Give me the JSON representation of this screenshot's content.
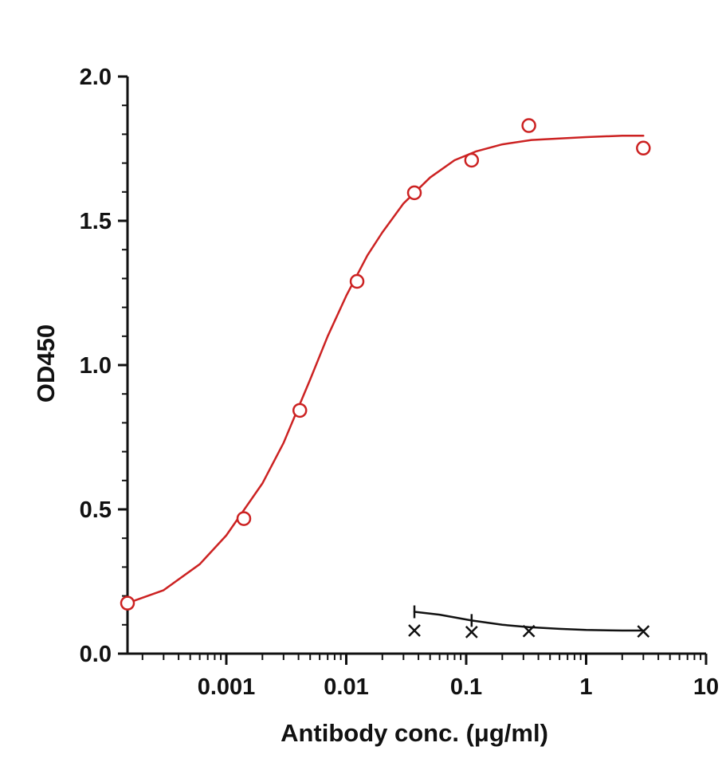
{
  "chart_data": {
    "type": "scatter",
    "title": "",
    "xlabel": "Antibody conc. (μg/ml)",
    "ylabel": "OD450",
    "x_scale": "log",
    "xlim": [
      0.00015,
      10
    ],
    "ylim": [
      0,
      2.0
    ],
    "grid": false,
    "legend": "none",
    "x_ticks": [
      {
        "value": 0.001,
        "label": "0.001"
      },
      {
        "value": 0.01,
        "label": "0.01"
      },
      {
        "value": 0.1,
        "label": "0.1"
      },
      {
        "value": 1,
        "label": "1"
      },
      {
        "value": 10,
        "label": "10"
      }
    ],
    "y_ticks": [
      {
        "value": 0.0,
        "label": "0.0"
      },
      {
        "value": 0.5,
        "label": "0.5"
      },
      {
        "value": 1.0,
        "label": "1.0"
      },
      {
        "value": 1.5,
        "label": "1.5"
      },
      {
        "value": 2.0,
        "label": "2.0"
      }
    ],
    "series": [
      {
        "marker": "circle",
        "color": "#cc2222",
        "x": [
          0.00015,
          0.0014,
          0.0041,
          0.0123,
          0.037,
          0.111,
          0.333,
          3.0
        ],
        "y": [
          0.175,
          0.468,
          0.843,
          1.29,
          1.597,
          1.71,
          1.83,
          1.752
        ],
        "curve": {
          "x": [
            0.00015,
            0.0003,
            0.0006,
            0.001,
            0.002,
            0.003,
            0.005,
            0.007,
            0.01,
            0.015,
            0.02,
            0.03,
            0.05,
            0.08,
            0.12,
            0.2,
            0.35,
            0.6,
            1.0,
            2.0,
            3.0
          ],
          "y": [
            0.175,
            0.22,
            0.31,
            0.41,
            0.59,
            0.73,
            0.95,
            1.1,
            1.24,
            1.38,
            1.46,
            1.56,
            1.65,
            1.71,
            1.74,
            1.765,
            1.78,
            1.785,
            1.79,
            1.795,
            1.795
          ]
        }
      },
      {
        "marker": "x",
        "color": "#111111",
        "x": [
          0.037,
          0.111,
          0.333,
          3.0
        ],
        "y": [
          0.08,
          0.075,
          0.078,
          0.077
        ],
        "curve": {
          "x": [
            0.037,
            0.06,
            0.111,
            0.2,
            0.333,
            0.6,
            1.0,
            2.0,
            3.0
          ],
          "y": [
            0.145,
            0.135,
            0.115,
            0.1,
            0.092,
            0.086,
            0.082,
            0.08,
            0.08
          ]
        },
        "error_caps": [
          {
            "x": 0.037,
            "y": 0.145
          },
          {
            "x": 0.111,
            "y": 0.115
          }
        ]
      }
    ]
  }
}
